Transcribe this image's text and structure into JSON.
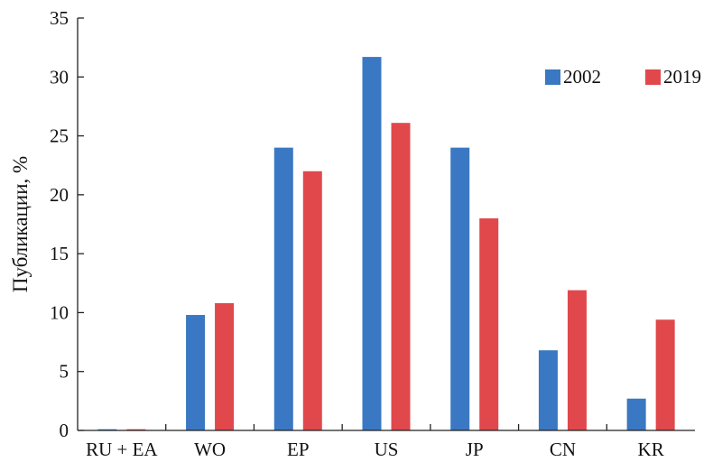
{
  "chart_data": {
    "type": "bar",
    "title": "",
    "xlabel": "",
    "ylabel": "Публикации, %",
    "ylim": [
      0,
      35
    ],
    "yticks": [
      0,
      5,
      10,
      15,
      20,
      25,
      30,
      35
    ],
    "ytick_labels": [
      "0",
      "5",
      "10",
      "15",
      "20",
      "25",
      "30",
      "35"
    ],
    "categories": [
      "RU + EA",
      "WO",
      "EP",
      "US",
      "JP",
      "CN",
      "KR"
    ],
    "series": [
      {
        "name": "2002",
        "color": "#3a78c3",
        "values": [
          0.1,
          9.8,
          24.0,
          31.7,
          24.0,
          6.8,
          2.7
        ]
      },
      {
        "name": "2019",
        "color": "#e0484c",
        "values": [
          0.1,
          10.8,
          22.0,
          26.1,
          18.0,
          11.9,
          9.4
        ]
      }
    ],
    "grid": false,
    "legend_position": "top-right"
  }
}
